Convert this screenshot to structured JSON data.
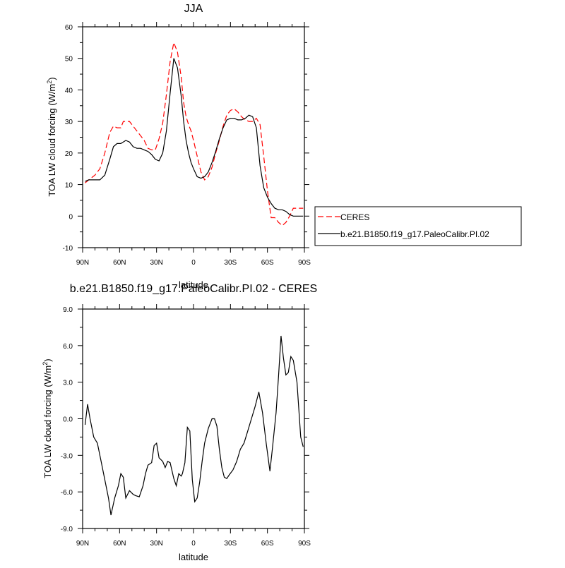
{
  "chart_data": [
    {
      "type": "line",
      "title": "JJA",
      "xlabel": "latitude",
      "ylabel": "TOA LW cloud forcing (W/m²)",
      "ylim": [
        -10,
        60
      ],
      "yticks": [
        "-10",
        "0",
        "10",
        "20",
        "30",
        "40",
        "50",
        "60"
      ],
      "yticks_values": [
        -10,
        0,
        10,
        20,
        30,
        40,
        50,
        60
      ],
      "xlim": [
        90,
        -90
      ],
      "xticks": [
        "90N",
        "60N",
        "30N",
        "0",
        "30S",
        "60S",
        "90S"
      ],
      "xticks_values": [
        90,
        60,
        30,
        0,
        -30,
        -60,
        -90
      ],
      "legend_position": "outside right",
      "series": [
        {
          "name": "CERES",
          "color": "#ff0000",
          "dash": "dashed",
          "x": [
            88,
            85,
            80,
            76,
            72,
            68,
            65,
            62,
            59,
            57,
            55,
            52,
            49,
            46,
            43,
            40,
            37,
            34,
            31,
            28,
            25,
            22,
            19,
            16,
            13,
            10,
            8,
            6,
            4,
            2,
            0,
            -3,
            -6,
            -9,
            -12,
            -15,
            -18,
            -21,
            -24,
            -27,
            -30,
            -33,
            -36,
            -39,
            -42,
            -45,
            -48,
            -51,
            -54,
            -57,
            -60,
            -63,
            -66,
            -69,
            -72,
            -75,
            -78,
            -81,
            -84,
            -87,
            -89
          ],
          "y": [
            10.5,
            11.5,
            13.0,
            15.0,
            20.0,
            26.5,
            28.5,
            28.0,
            28.0,
            30.0,
            30.0,
            30.0,
            28.5,
            27.0,
            25.5,
            24.0,
            21.5,
            21.0,
            21.0,
            24.5,
            29.5,
            38.5,
            49.0,
            55.0,
            52.0,
            44.0,
            36.0,
            31.5,
            29.0,
            27.0,
            24.0,
            19.0,
            14.0,
            11.5,
            12.5,
            15.5,
            20.0,
            24.0,
            28.5,
            32.0,
            33.5,
            34.0,
            33.0,
            31.5,
            30.5,
            30.0,
            30.0,
            31.0,
            29.0,
            19.0,
            8.0,
            -0.5,
            -0.5,
            -2.0,
            -3.0,
            -2.0,
            0.0,
            2.5,
            2.5,
            2.5,
            2.5
          ]
        },
        {
          "name": "b.e21.B1850.f19_g17.PaleoCalibr.PI.02",
          "color": "#000000",
          "dash": "solid",
          "x": [
            88,
            85,
            80,
            76,
            72,
            68,
            65,
            62,
            59,
            57,
            55,
            52,
            49,
            46,
            43,
            40,
            37,
            34,
            31,
            28,
            25,
            22,
            19,
            16,
            13,
            10,
            8,
            6,
            4,
            2,
            0,
            -3,
            -6,
            -9,
            -12,
            -15,
            -18,
            -21,
            -24,
            -27,
            -30,
            -33,
            -36,
            -39,
            -42,
            -45,
            -48,
            -51,
            -54,
            -57,
            -60,
            -63,
            -66,
            -69,
            -72,
            -75,
            -78,
            -81,
            -84,
            -87,
            -89
          ],
          "y": [
            11.0,
            11.5,
            11.5,
            11.5,
            13.0,
            18.0,
            22.0,
            23.0,
            23.0,
            23.5,
            24.0,
            23.5,
            22.0,
            21.5,
            21.5,
            21.0,
            20.5,
            19.5,
            18.0,
            17.5,
            20.0,
            27.0,
            39.0,
            50.0,
            47.0,
            38.0,
            30.0,
            24.0,
            20.0,
            17.0,
            15.0,
            12.5,
            12.0,
            12.5,
            14.0,
            17.0,
            20.5,
            24.5,
            28.0,
            30.5,
            31.0,
            31.0,
            30.5,
            30.5,
            31.0,
            32.0,
            31.5,
            28.0,
            16.0,
            9.0,
            6.0,
            4.0,
            2.5,
            2.0,
            2.0,
            1.5,
            0.5,
            0.0,
            0.0,
            0.0,
            0.0
          ]
        }
      ]
    },
    {
      "type": "line",
      "title": "b.e21.B1850.f19_g17.PaleoCalibr.PI.02 - CERES",
      "xlabel": "latitude",
      "ylabel": "TOA LW cloud forcing (W/m²)",
      "ylim": [
        -9,
        9
      ],
      "yticks": [
        "-9.0",
        "-6.0",
        "-3.0",
        "0.0",
        "3.0",
        "6.0",
        "9.0"
      ],
      "yticks_values": [
        -9,
        -6,
        -3,
        0,
        3,
        6,
        9
      ],
      "xlim": [
        90,
        -90
      ],
      "xticks": [
        "90N",
        "60N",
        "30N",
        "0",
        "30S",
        "60S",
        "90S"
      ],
      "xticks_values": [
        90,
        60,
        30,
        0,
        -30,
        -60,
        -90
      ],
      "series": [
        {
          "color": "#000000",
          "dash": "solid",
          "x": [
            88,
            86,
            84,
            81,
            78,
            75,
            72,
            69,
            67,
            64,
            61,
            59,
            57,
            55,
            52,
            49,
            47,
            44,
            41,
            39,
            37,
            34,
            32,
            30,
            28,
            25,
            23,
            21,
            19,
            16,
            14,
            12,
            10,
            9,
            7,
            5,
            3,
            1,
            -1,
            -3,
            -5,
            -7,
            -9,
            -12,
            -15,
            -17,
            -19,
            -21,
            -23,
            -25,
            -27,
            -29,
            -32,
            -35,
            -38,
            -41,
            -44,
            -47,
            -50,
            -53,
            -56,
            -59,
            -62,
            -64,
            -67,
            -69,
            -71,
            -73,
            -75,
            -77,
            -79,
            -81,
            -84,
            -87,
            -89
          ],
          "y": [
            -0.5,
            1.2,
            0.0,
            -1.5,
            -2.0,
            -3.5,
            -5.0,
            -6.5,
            -7.9,
            -6.5,
            -5.5,
            -4.5,
            -4.8,
            -6.5,
            -5.9,
            -6.2,
            -6.3,
            -6.4,
            -5.5,
            -4.5,
            -3.8,
            -3.6,
            -2.2,
            -2.0,
            -3.2,
            -3.5,
            -4.0,
            -3.5,
            -3.6,
            -4.9,
            -5.5,
            -4.5,
            -4.7,
            -4.5,
            -3.6,
            -0.7,
            -1.0,
            -5.0,
            -6.8,
            -6.5,
            -5.2,
            -3.5,
            -2.0,
            -0.8,
            0.0,
            0.0,
            -0.6,
            -2.5,
            -4.0,
            -4.8,
            -4.9,
            -4.6,
            -4.2,
            -3.5,
            -2.5,
            -2.0,
            -1.0,
            0.0,
            1.0,
            2.2,
            0.5,
            -2.0,
            -4.3,
            -2.5,
            0.5,
            3.5,
            6.8,
            5.0,
            3.6,
            3.8,
            5.1,
            4.8,
            3.0,
            -1.5,
            -2.3
          ]
        }
      ]
    }
  ]
}
